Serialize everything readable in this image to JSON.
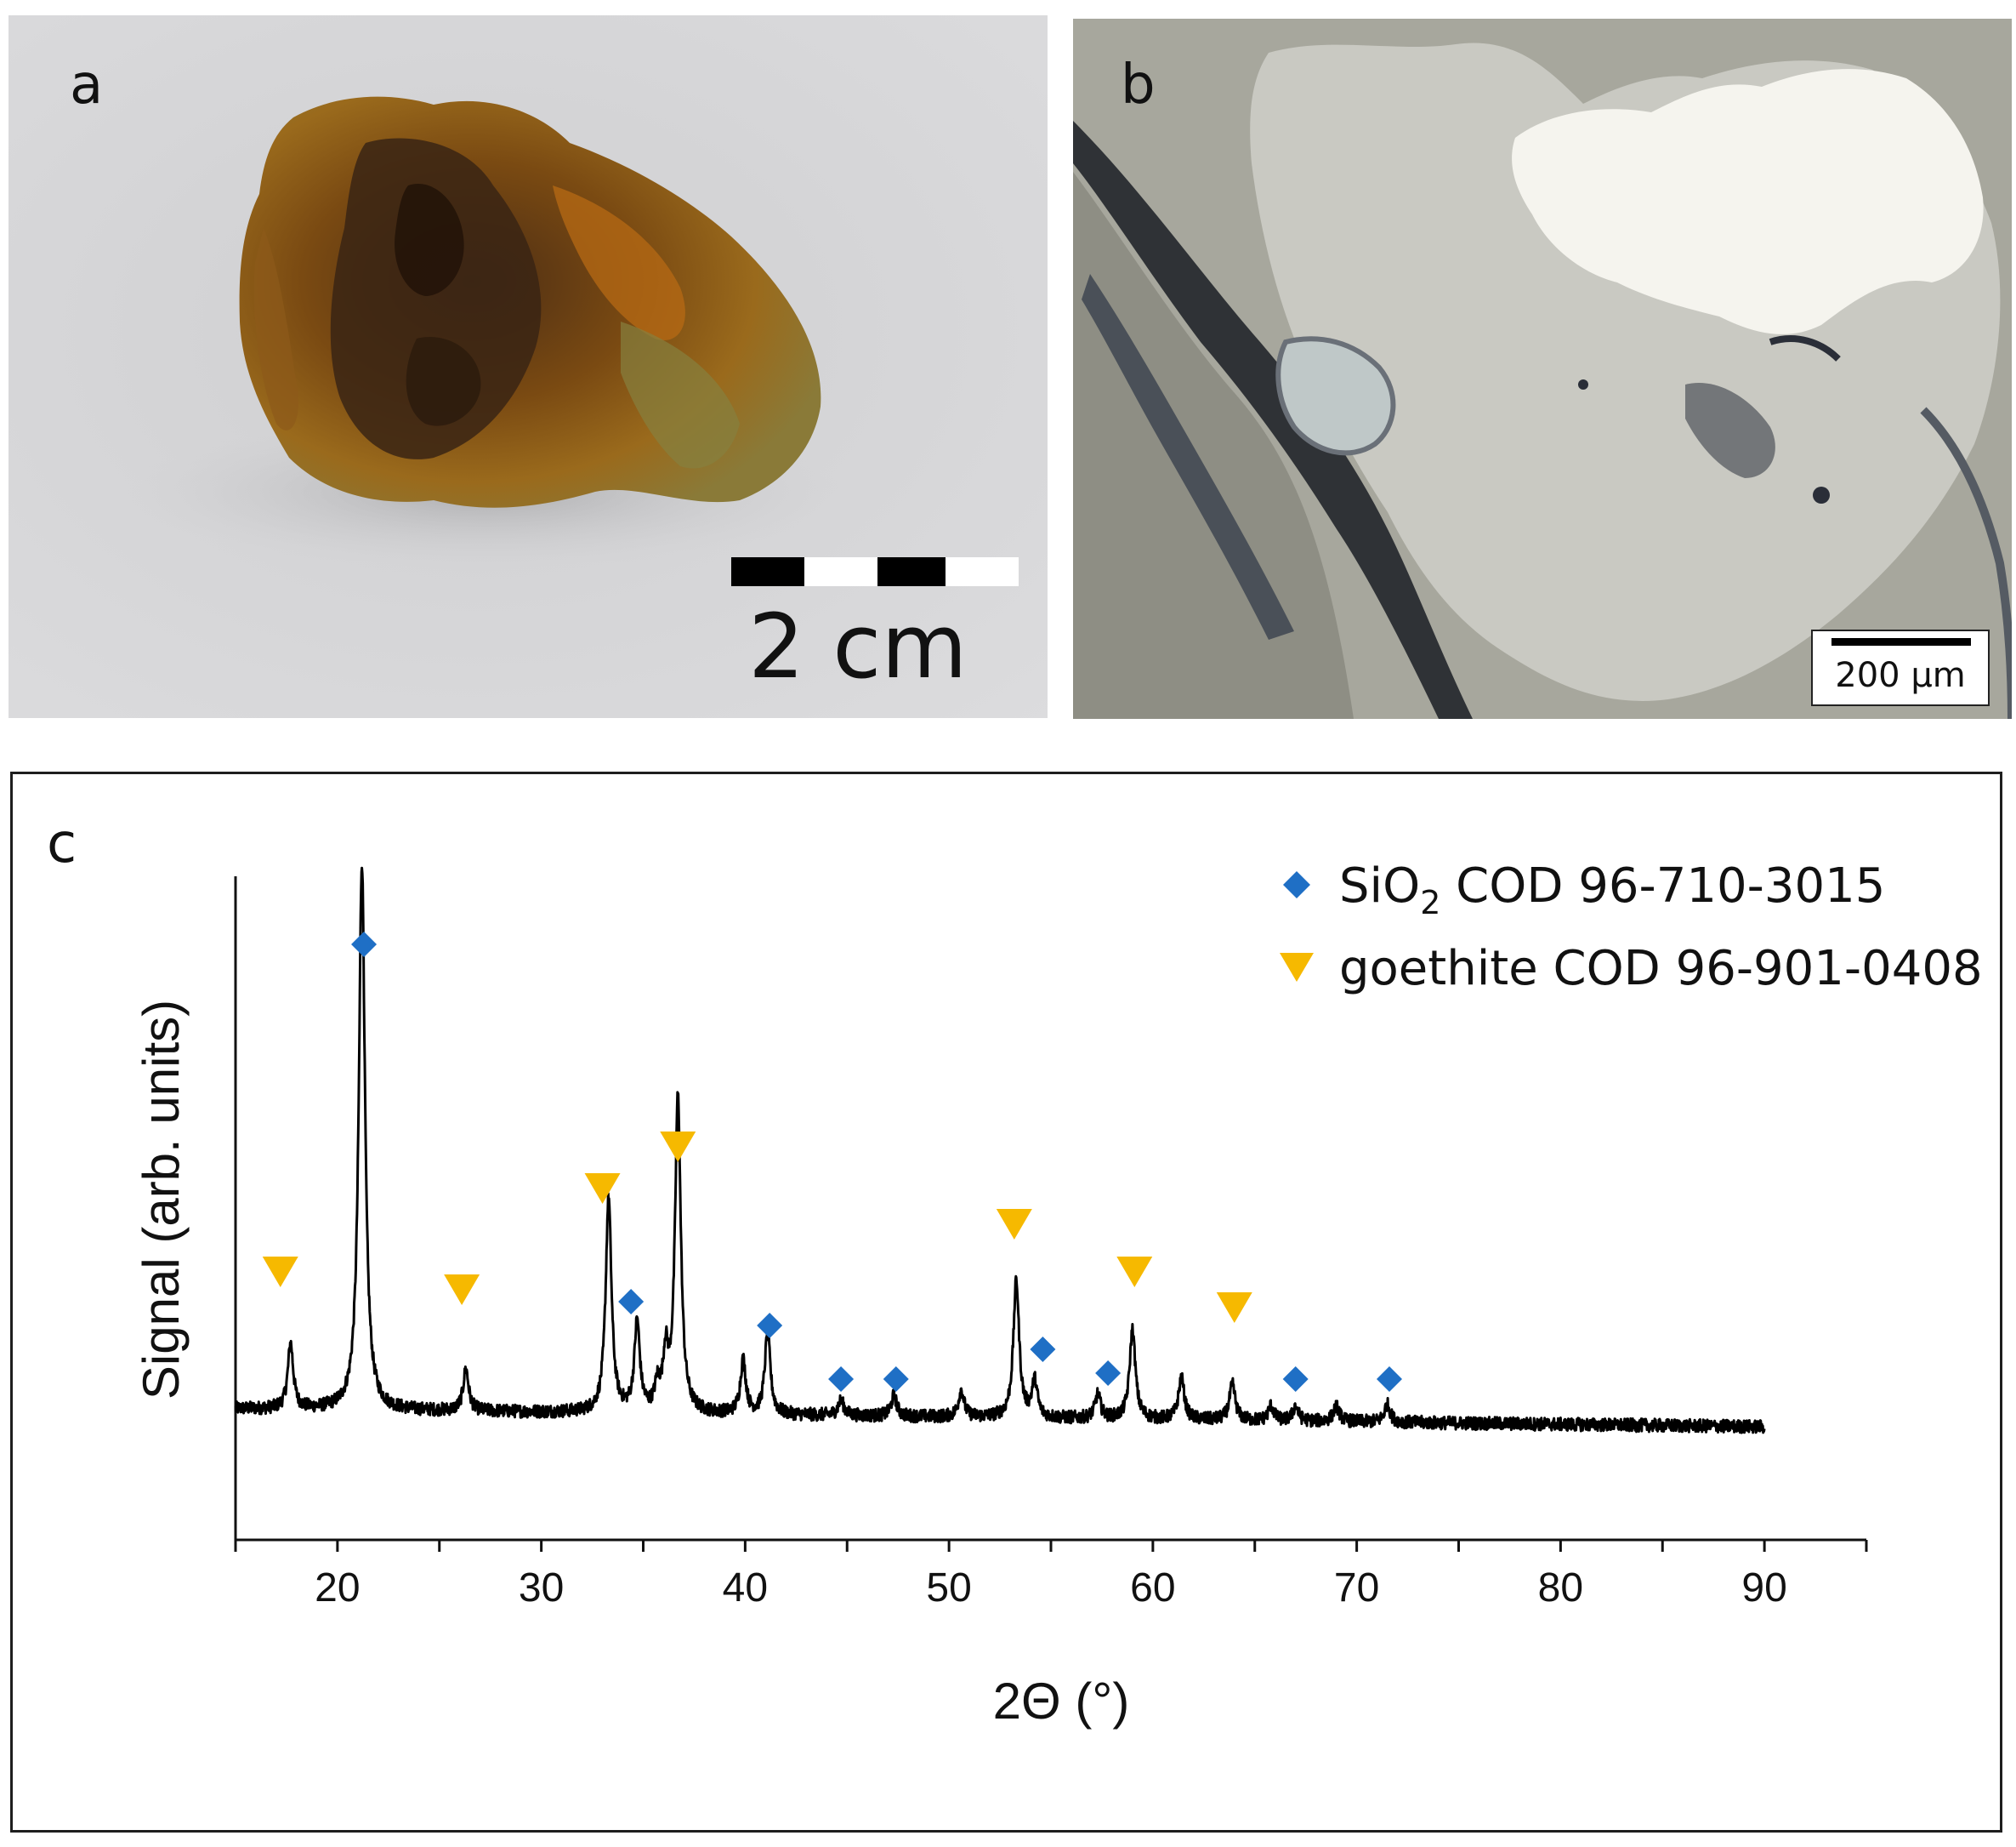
{
  "panels": {
    "a": {
      "label": "a",
      "scale_bar_label": "2 cm"
    },
    "b": {
      "label": "b",
      "scale_bar_label": "200 µm"
    },
    "c": {
      "label": "c"
    }
  },
  "colors": {
    "sio2_marker": "#1f6fc5",
    "goethite_marker": "#f6b900",
    "trace": "#000000",
    "axis": "#111111"
  },
  "chart_data": {
    "type": "line",
    "title": "",
    "xlabel": "2Θ (°)",
    "ylabel": "Signal (arb. units)",
    "xlim": [
      15,
      95
    ],
    "ylim": [
      0,
      100
    ],
    "x_ticks": [
      20,
      30,
      40,
      50,
      60,
      70,
      80,
      90
    ],
    "grid": false,
    "y_tick_labels": false,
    "legend_position": "top-right",
    "legend": [
      {
        "marker": "diamond",
        "color": "#1f6fc5",
        "prefix": "SiO",
        "subscript": "2",
        "suffix": " COD 96-710-3015"
      },
      {
        "marker": "triangle-down",
        "color": "#f6b900",
        "label": "goethite COD 96-901-0408"
      }
    ],
    "series": [
      {
        "baseline_start": 22,
        "baseline_end": 19,
        "x_range": [
          15,
          90
        ],
        "peaks": [
          {
            "x": 17.7,
            "height": 11,
            "width": 0.16
          },
          {
            "x": 21.2,
            "height": 92,
            "width": 0.18
          },
          {
            "x": 26.3,
            "height": 7,
            "width": 0.16
          },
          {
            "x": 33.3,
            "height": 36,
            "width": 0.17
          },
          {
            "x": 34.7,
            "height": 15,
            "width": 0.16
          },
          {
            "x": 35.7,
            "height": 4,
            "width": 0.15
          },
          {
            "x": 36.1,
            "height": 9,
            "width": 0.15
          },
          {
            "x": 36.7,
            "height": 53,
            "width": 0.17
          },
          {
            "x": 39.9,
            "height": 9,
            "width": 0.16
          },
          {
            "x": 41.1,
            "height": 14,
            "width": 0.16
          },
          {
            "x": 44.7,
            "height": 2.5,
            "width": 0.18
          },
          {
            "x": 47.3,
            "height": 3.5,
            "width": 0.16
          },
          {
            "x": 50.6,
            "height": 4.5,
            "width": 0.16
          },
          {
            "x": 53.3,
            "height": 23,
            "width": 0.17
          },
          {
            "x": 54.2,
            "height": 6,
            "width": 0.16
          },
          {
            "x": 57.3,
            "height": 4,
            "width": 0.16
          },
          {
            "x": 59.0,
            "height": 15,
            "width": 0.17
          },
          {
            "x": 61.4,
            "height": 7,
            "width": 0.17
          },
          {
            "x": 63.9,
            "height": 6,
            "width": 0.17
          },
          {
            "x": 65.8,
            "height": 2.5,
            "width": 0.16
          },
          {
            "x": 67.0,
            "height": 2.5,
            "width": 0.16
          },
          {
            "x": 69.0,
            "height": 2.5,
            "width": 0.18
          },
          {
            "x": 71.5,
            "height": 3,
            "width": 0.17
          }
        ]
      }
    ],
    "markers": {
      "sio2": [
        {
          "x": 21.3,
          "y": 100
        },
        {
          "x": 34.4,
          "y": 40
        },
        {
          "x": 41.2,
          "y": 36
        },
        {
          "x": 44.7,
          "y": 27
        },
        {
          "x": 47.4,
          "y": 27
        },
        {
          "x": 54.6,
          "y": 32
        },
        {
          "x": 57.8,
          "y": 28
        },
        {
          "x": 67.0,
          "y": 27
        },
        {
          "x": 71.6,
          "y": 27
        }
      ],
      "goethite": [
        {
          "x": 17.2,
          "y": 45
        },
        {
          "x": 26.1,
          "y": 42
        },
        {
          "x": 33.0,
          "y": 59
        },
        {
          "x": 36.7,
          "y": 66
        },
        {
          "x": 53.2,
          "y": 53
        },
        {
          "x": 59.1,
          "y": 45
        },
        {
          "x": 64.0,
          "y": 39
        }
      ]
    }
  }
}
